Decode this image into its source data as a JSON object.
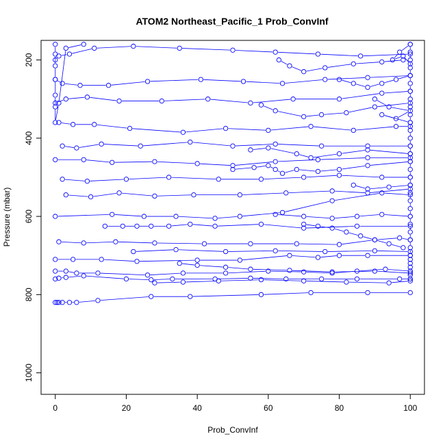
{
  "chart_data": {
    "type": "scatter",
    "title": "ATOM2 Northeast_Pacific_1 Prob_ConvInf",
    "xlabel": "Prob_ConvInf",
    "ylabel": "Pressure (mbar)",
    "xlim": [
      -4,
      104
    ],
    "ylim": [
      1055,
      150
    ],
    "y_reversed": true,
    "x_ticks": [
      0,
      20,
      40,
      60,
      80,
      100
    ],
    "y_ticks": [
      200,
      400,
      600,
      800,
      1000
    ],
    "marker": "open-circle",
    "connected": true,
    "series_color": "#0000ff",
    "grid": false,
    "series": [
      {
        "x": [
          0,
          0.5,
          1,
          2,
          4,
          6,
          12,
          27,
          38,
          58,
          72,
          88,
          100
        ],
        "y": [
          820,
          820,
          820,
          820,
          820,
          820,
          815,
          805,
          805,
          800,
          795,
          795,
          795
        ]
      },
      {
        "x": [
          0,
          1,
          3,
          8,
          20,
          27,
          33,
          45,
          55,
          65,
          75,
          85,
          97,
          100
        ],
        "y": [
          760,
          758,
          756,
          752,
          760,
          762,
          760,
          760,
          758,
          760,
          760,
          760,
          760,
          760
        ]
      },
      {
        "x": [
          0,
          3,
          6,
          12,
          26,
          36,
          48,
          60,
          70,
          78,
          85,
          93,
          100
        ],
        "y": [
          740,
          740,
          745,
          745,
          750,
          745,
          745,
          740,
          742,
          745,
          740,
          735,
          740
        ]
      },
      {
        "x": [
          0,
          5,
          13,
          23,
          40,
          52,
          66,
          74,
          80,
          88,
          100
        ],
        "y": [
          710,
          710,
          710,
          715,
          712,
          712,
          700,
          705,
          700,
          700,
          700
        ]
      },
      {
        "x": [
          1,
          8,
          17,
          28,
          42,
          55,
          68,
          80,
          90,
          97,
          100
        ],
        "y": [
          665,
          668,
          665,
          668,
          670,
          670,
          670,
          672,
          660,
          655,
          660
        ]
      },
      {
        "x": [
          14,
          19,
          23,
          27,
          32,
          38,
          45,
          58,
          70,
          85,
          100
        ],
        "y": [
          625,
          625,
          625,
          625,
          625,
          620,
          625,
          620,
          630,
          625,
          625
        ]
      },
      {
        "x": [
          0,
          16,
          25,
          34,
          45,
          52,
          64,
          78,
          92,
          100
        ],
        "y": [
          600,
          595,
          600,
          600,
          605,
          600,
          590,
          560,
          540,
          545
        ]
      },
      {
        "x": [
          3,
          10,
          18,
          28,
          39,
          52,
          65,
          78,
          88,
          100
        ],
        "y": [
          545,
          550,
          540,
          548,
          545,
          545,
          540,
          535,
          540,
          530
        ]
      },
      {
        "x": [
          2,
          9,
          20,
          32,
          46,
          58,
          70,
          80,
          92,
          100
        ],
        "y": [
          505,
          510,
          505,
          500,
          505,
          505,
          500,
          495,
          500,
          500
        ]
      },
      {
        "x": [
          0,
          8,
          16,
          28,
          40,
          50,
          62,
          74,
          88,
          100
        ],
        "y": [
          455,
          455,
          462,
          460,
          465,
          470,
          460,
          455,
          450,
          450
        ]
      },
      {
        "x": [
          2,
          6,
          13,
          24,
          38,
          50,
          62,
          75,
          88,
          100
        ],
        "y": [
          420,
          425,
          415,
          420,
          410,
          420,
          415,
          420,
          420,
          420
        ]
      },
      {
        "x": [
          1,
          5,
          11,
          21,
          36,
          48,
          60,
          72,
          84,
          96,
          100
        ],
        "y": [
          360,
          365,
          365,
          375,
          385,
          375,
          380,
          370,
          380,
          370,
          370
        ]
      },
      {
        "x": [
          0,
          3,
          9,
          18,
          30,
          43,
          55,
          67,
          80,
          92,
          100
        ],
        "y": [
          310,
          300,
          295,
          305,
          305,
          300,
          310,
          300,
          300,
          285,
          280
        ]
      },
      {
        "x": [
          0,
          2,
          7,
          15,
          26,
          41,
          53,
          64,
          76,
          88,
          100
        ],
        "y": [
          250,
          260,
          265,
          265,
          255,
          250,
          255,
          260,
          250,
          245,
          240
        ]
      },
      {
        "x": [
          0,
          1,
          4,
          11,
          22,
          35,
          50,
          62,
          74,
          86,
          100
        ],
        "y": [
          200,
          190,
          185,
          170,
          165,
          170,
          175,
          180,
          185,
          190,
          185
        ]
      },
      {
        "x": [
          0,
          0,
          0,
          0,
          0,
          0,
          0,
          1,
          3,
          8
        ],
        "y": [
          160,
          185,
          215,
          250,
          290,
          320,
          360,
          310,
          170,
          160
        ]
      },
      {
        "x": [
          100,
          100,
          100,
          100,
          100,
          100,
          100,
          100,
          100,
          100,
          100,
          100,
          100,
          100,
          100,
          100,
          100,
          100,
          100,
          100,
          100,
          100,
          100,
          100,
          100,
          100,
          100,
          100,
          100,
          100,
          100,
          100,
          100,
          100
        ],
        "y": [
          160,
          180,
          200,
          220,
          240,
          260,
          280,
          300,
          320,
          340,
          360,
          380,
          400,
          420,
          440,
          460,
          480,
          500,
          520,
          540,
          560,
          580,
          600,
          620,
          640,
          660,
          680,
          700,
          710,
          720,
          730,
          740,
          750,
          760
        ]
      },
      {
        "x": [
          100,
          97,
          95,
          98,
          100
        ],
        "y": [
          160,
          180,
          200,
          190,
          210
        ]
      },
      {
        "x": [
          90,
          94,
          100,
          96,
          92,
          100
        ],
        "y": [
          300,
          320,
          330,
          350,
          340,
          360
        ]
      },
      {
        "x": [
          84,
          88,
          94,
          100
        ],
        "y": [
          520,
          530,
          525,
          520
        ]
      },
      {
        "x": [
          62,
          70,
          78,
          85,
          92,
          100
        ],
        "y": [
          595,
          600,
          605,
          600,
          595,
          600
        ]
      },
      {
        "x": [
          55,
          60,
          68,
          72,
          80,
          88,
          100
        ],
        "y": [
          430,
          425,
          440,
          450,
          440,
          430,
          440
        ]
      },
      {
        "x": [
          63,
          66,
          70,
          76,
          84,
          92,
          98
        ],
        "y": [
          200,
          215,
          230,
          220,
          210,
          205,
          200
        ]
      },
      {
        "x": [
          58,
          62,
          70,
          75,
          82,
          90,
          100
        ],
        "y": [
          315,
          330,
          345,
          340,
          335,
          320,
          310
        ]
      },
      {
        "x": [
          35,
          40,
          48,
          55,
          66,
          78,
          90,
          100
        ],
        "y": [
          720,
          725,
          730,
          735,
          738,
          742,
          740,
          745
        ]
      },
      {
        "x": [
          28,
          36,
          46,
          58,
          70,
          82,
          94,
          100
        ],
        "y": [
          770,
          768,
          765,
          762,
          765,
          768,
          770,
          765
        ]
      },
      {
        "x": [
          22,
          34,
          48,
          62,
          76,
          90,
          100
        ],
        "y": [
          690,
          685,
          690,
          688,
          690,
          688,
          690
        ]
      },
      {
        "x": [
          50,
          56,
          60,
          62,
          64,
          68,
          74,
          80,
          88,
          100
        ],
        "y": [
          480,
          475,
          470,
          480,
          490,
          480,
          485,
          480,
          470,
          460
        ]
      },
      {
        "x": [
          80,
          84,
          88,
          92,
          96,
          100
        ],
        "y": [
          250,
          260,
          270,
          260,
          250,
          240
        ]
      },
      {
        "x": [
          70,
          74,
          78,
          82,
          86,
          90,
          94,
          98
        ],
        "y": [
          620,
          625,
          630,
          640,
          650,
          660,
          670,
          680
        ]
      }
    ]
  }
}
